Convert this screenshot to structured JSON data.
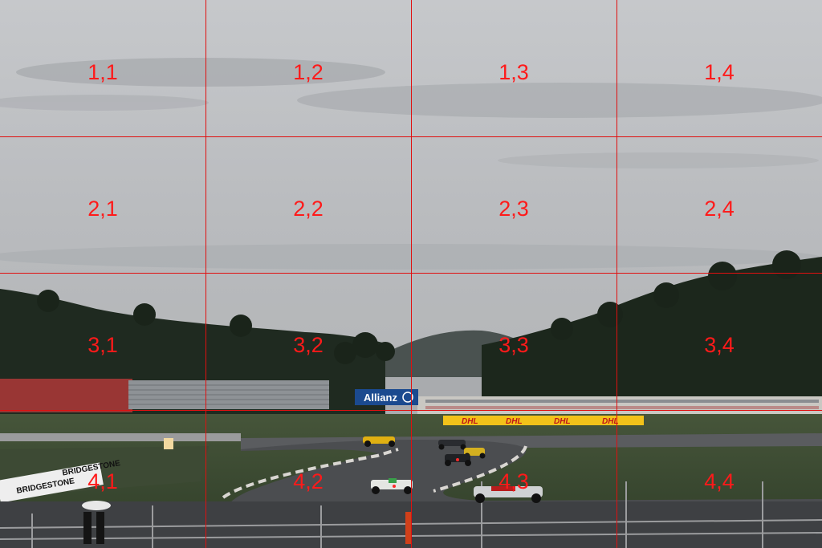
{
  "photo": {
    "description_colors": {
      "sky_top": "#c4c6c9",
      "sky_bottom": "#b8babc",
      "hills": "#1e2a1f",
      "grass": "#3c4d32",
      "track": "#4a4c4f"
    },
    "signs": {
      "allianz": "Allianz",
      "bridgestone_1": "BRIDGESTONE",
      "bridgestone_2": "BRIDGESTONE",
      "dhl": "DHL"
    }
  },
  "grid": {
    "labels": [
      {
        "id": "1-1",
        "text": "1,1"
      },
      {
        "id": "1-2",
        "text": "1,2"
      },
      {
        "id": "1-3",
        "text": "1,3"
      },
      {
        "id": "1-4",
        "text": "1,4"
      },
      {
        "id": "2-1",
        "text": "2,1"
      },
      {
        "id": "2-2",
        "text": "2,2"
      },
      {
        "id": "2-3",
        "text": "2,3"
      },
      {
        "id": "2-4",
        "text": "2,4"
      },
      {
        "id": "3-1",
        "text": "3,1"
      },
      {
        "id": "3-2",
        "text": "3,2"
      },
      {
        "id": "3-3",
        "text": "3,3"
      },
      {
        "id": "3-4",
        "text": "3,4"
      },
      {
        "id": "4-1",
        "text": "4,1"
      },
      {
        "id": "4-2",
        "text": "4,2"
      },
      {
        "id": "4-3",
        "text": "4,3"
      },
      {
        "id": "4-4",
        "text": "4,4"
      }
    ],
    "line_color": "#e01010",
    "label_color": "#ff1a1a"
  }
}
